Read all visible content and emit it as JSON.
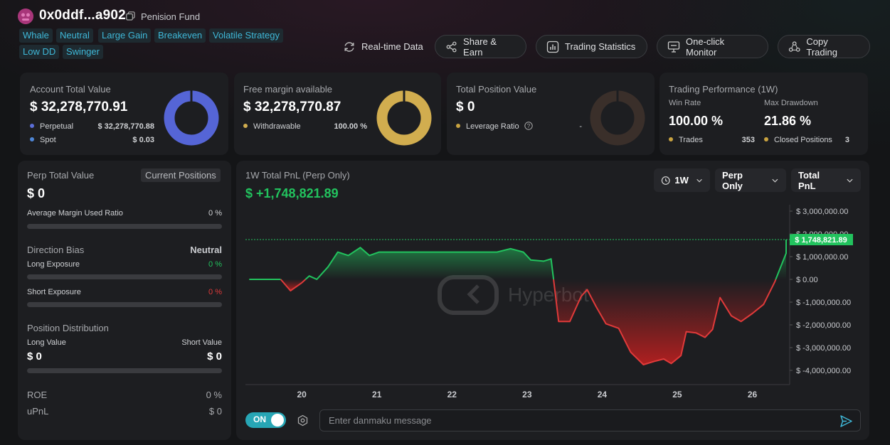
{
  "header": {
    "address": "0x0ddf...a902",
    "fund_name": "Penision Fund",
    "tags": [
      "Whale",
      "Neutral",
      "Large Gain",
      "Breakeven",
      "Volatile Strategy",
      "Low DD",
      "Swinger"
    ],
    "buttons": {
      "realtime": "Real-time Data",
      "share": "Share & Earn",
      "stats": "Trading Statistics",
      "monitor": "One-click Monitor",
      "copy": "Copy Trading"
    }
  },
  "cards": {
    "account": {
      "label": "Account Total Value",
      "value": "$ 32,278,770.91",
      "rows": [
        {
          "label": "Perpetual",
          "value": "$ 32,278,770.88",
          "color": "#5b6ed8"
        },
        {
          "label": "Spot",
          "value": "$ 0.03",
          "color": "#4e86d6"
        }
      ],
      "donut_color": "#5565d6"
    },
    "margin": {
      "label": "Free margin available",
      "value": "$ 32,278,770.87",
      "row_label": "Withdrawable",
      "row_value": "100.00 %",
      "color": "#d1ad4f"
    },
    "position": {
      "label": "Total Position Value",
      "value": "$ 0",
      "row_label": "Leverage Ratio",
      "row_value": "-",
      "color": "#3a2f2a",
      "dot_color": "#c9a340"
    },
    "performance": {
      "label": "Trading Performance (1W)",
      "win_rate_label": "Win Rate",
      "win_rate": "100.00 %",
      "drawdown_label": "Max Drawdown",
      "drawdown": "21.86 %",
      "trades_label": "Trades",
      "trades": "353",
      "closed_label": "Closed Positions",
      "closed": "3",
      "dot_color": "#c9a340"
    }
  },
  "perp": {
    "label": "Perp Total Value",
    "badge": "Current Positions",
    "value": "$ 0",
    "avg_margin_label": "Average Margin Used Ratio",
    "avg_margin": "0 %",
    "bias_label": "Direction Bias",
    "bias": "Neutral",
    "long_exp_label": "Long Exposure",
    "long_exp": "0 %",
    "short_exp_label": "Short Exposure",
    "short_exp": "0 %",
    "dist_label": "Position Distribution",
    "long_value_label": "Long Value",
    "short_value_label": "Short Value",
    "long_value": "$ 0",
    "short_value": "$ 0",
    "roe_label": "ROE",
    "roe": "0 %",
    "upnl_label": "uPnL",
    "upnl": "$ 0",
    "green": "#22c35e",
    "red": "#e03a3a"
  },
  "pnl": {
    "title": "1W Total PnL (Perp Only)",
    "value": "$ +1,748,821.89",
    "dropdowns": {
      "period": "1W",
      "scope": "Perp Only",
      "metric": "Total PnL"
    },
    "watermark": "Hyperbot",
    "current_label": "$ 1,748,821.89"
  },
  "chart_data": {
    "type": "line",
    "title": "1W Total PnL (Perp Only)",
    "xlabel": "",
    "ylabel": "",
    "x_ticks": [
      "20",
      "21",
      "22",
      "23",
      "24",
      "25",
      "26"
    ],
    "y_ticks": [
      "$ 3,000,000.00",
      "$ 2,000,000.00",
      "$ 1,000,000.00",
      "$ 0.00",
      "$ -1,000,000.00",
      "$ -2,000,000.00",
      "$ -3,000,000.00",
      "$ -4,000,000.00"
    ],
    "ylim": [
      -4400000,
      3100000
    ],
    "xlim": [
      19.25,
      26.45
    ],
    "last_value": 1748821.89,
    "series": [
      {
        "values": [
          [
            19.3,
            0
          ],
          [
            19.6,
            0
          ],
          [
            19.72,
            0
          ],
          [
            19.85,
            -500000
          ],
          [
            20.0,
            -150000
          ],
          [
            20.1,
            150000
          ],
          [
            20.2,
            0
          ],
          [
            20.35,
            550000
          ],
          [
            20.48,
            1200000
          ],
          [
            20.62,
            1050000
          ],
          [
            20.78,
            1400000
          ],
          [
            20.9,
            1050000
          ],
          [
            21.03,
            1200000
          ],
          [
            21.3,
            1200000
          ],
          [
            21.7,
            1200000
          ],
          [
            22.1,
            1200000
          ],
          [
            22.4,
            1200000
          ],
          [
            22.6,
            1200000
          ],
          [
            22.78,
            1350000
          ],
          [
            22.95,
            1200000
          ],
          [
            23.05,
            850000
          ],
          [
            23.22,
            800000
          ],
          [
            23.32,
            900000
          ],
          [
            23.42,
            -1850000
          ],
          [
            23.57,
            -1850000
          ],
          [
            23.72,
            -750000
          ],
          [
            23.8,
            -450000
          ],
          [
            23.92,
            -1200000
          ],
          [
            24.05,
            -1950000
          ],
          [
            24.22,
            -2150000
          ],
          [
            24.38,
            -3200000
          ],
          [
            24.55,
            -3750000
          ],
          [
            24.7,
            -3600000
          ],
          [
            24.82,
            -3500000
          ],
          [
            24.92,
            -3700000
          ],
          [
            25.05,
            -3350000
          ],
          [
            25.12,
            -2300000
          ],
          [
            25.25,
            -2350000
          ],
          [
            25.37,
            -2550000
          ],
          [
            25.47,
            -2200000
          ],
          [
            25.57,
            -800000
          ],
          [
            25.72,
            -1600000
          ],
          [
            25.85,
            -1850000
          ],
          [
            26.0,
            -1500000
          ],
          [
            26.15,
            -1100000
          ],
          [
            26.3,
            -100000
          ],
          [
            26.45,
            1150000
          ],
          [
            26.55,
            1750000
          ],
          [
            26.85,
            1748821.89
          ]
        ]
      }
    ]
  },
  "danmaku": {
    "toggle": "ON",
    "placeholder": "Enter danmaku message"
  }
}
